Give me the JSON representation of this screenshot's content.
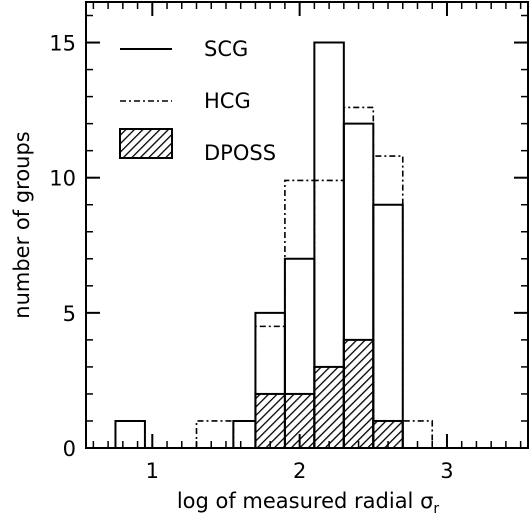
{
  "chart_data": {
    "type": "histogram",
    "xlabel": "log of measured radial σ",
    "xlabel_subscript": "r",
    "ylabel": "number of groups",
    "xlim": [
      0.55,
      3.55
    ],
    "ylim": [
      0,
      16.5
    ],
    "x_ticks": [
      1,
      2,
      3
    ],
    "y_ticks": [
      0,
      5,
      10,
      15
    ],
    "x_tick_labels": [
      "1",
      "2",
      "3"
    ],
    "y_tick_labels": [
      "0",
      "5",
      "10",
      "15"
    ],
    "legend_position": "top-left",
    "series": [
      {
        "name": "SCG",
        "style": "solid",
        "bins": [
          {
            "x0": 0.75,
            "x1": 0.95,
            "count": 1
          },
          {
            "x0": 1.55,
            "x1": 1.7,
            "count": 1
          },
          {
            "x0": 1.7,
            "x1": 1.9,
            "count": 5
          },
          {
            "x0": 1.9,
            "x1": 2.1,
            "count": 7
          },
          {
            "x0": 2.1,
            "x1": 2.3,
            "count": 15
          },
          {
            "x0": 2.3,
            "x1": 2.5,
            "count": 12
          },
          {
            "x0": 2.5,
            "x1": 2.7,
            "count": 9
          }
        ]
      },
      {
        "name": "HCG",
        "style": "dot-dash",
        "bins": [
          {
            "x0": 1.3,
            "x1": 1.55,
            "count": 1
          },
          {
            "x0": 1.55,
            "x1": 1.7,
            "count": 1
          },
          {
            "x0": 1.7,
            "x1": 1.9,
            "count": 4.5
          },
          {
            "x0": 1.9,
            "x1": 2.1,
            "count": 9.9
          },
          {
            "x0": 2.1,
            "x1": 2.3,
            "count": 9.9
          },
          {
            "x0": 2.3,
            "x1": 2.5,
            "count": 12.6
          },
          {
            "x0": 2.5,
            "x1": 2.7,
            "count": 10.8
          },
          {
            "x0": 2.7,
            "x1": 2.9,
            "count": 1
          }
        ]
      },
      {
        "name": "DPOSS",
        "style": "hatched",
        "bins": [
          {
            "x0": 1.7,
            "x1": 2.1,
            "count": 2
          },
          {
            "x0": 2.1,
            "x1": 2.3,
            "count": 3
          },
          {
            "x0": 2.3,
            "x1": 2.5,
            "count": 4
          },
          {
            "x0": 2.5,
            "x1": 2.7,
            "count": 1
          }
        ]
      }
    ]
  }
}
